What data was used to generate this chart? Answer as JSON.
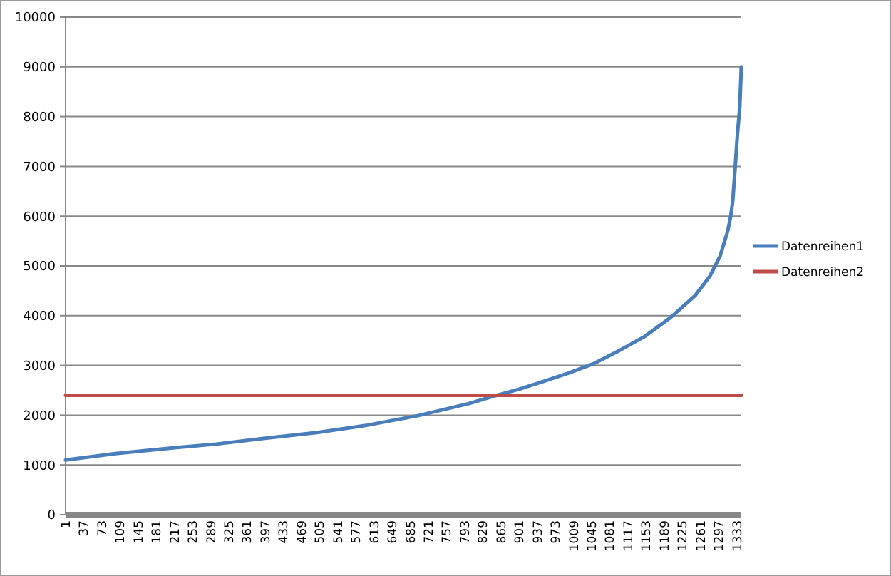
{
  "chart_data": {
    "type": "line",
    "xlim": [
      1,
      1342
    ],
    "xticks": [
      1,
      37,
      73,
      109,
      145,
      181,
      217,
      253,
      289,
      325,
      361,
      397,
      433,
      469,
      505,
      541,
      577,
      613,
      649,
      685,
      721,
      757,
      793,
      829,
      865,
      901,
      937,
      973,
      1009,
      1045,
      1081,
      1117,
      1153,
      1189,
      1225,
      1261,
      1297,
      1333
    ],
    "ylim": [
      0,
      10000
    ],
    "yticks": [
      0,
      1000,
      2000,
      3000,
      4000,
      5000,
      6000,
      7000,
      8000,
      9000,
      10000
    ],
    "grid": "y",
    "legend": "right",
    "line_style": "solid",
    "series": [
      {
        "name": "Datenreihen1",
        "color": "#4a7ebb",
        "x": [
          1,
          100,
          200,
          300,
          400,
          500,
          600,
          700,
          800,
          850,
          900,
          950,
          1000,
          1050,
          1100,
          1150,
          1200,
          1250,
          1280,
          1300,
          1315,
          1321,
          1325,
          1330,
          1334,
          1339,
          1342
        ],
        "values": [
          1100,
          1230,
          1330,
          1420,
          1540,
          1650,
          1800,
          1990,
          2230,
          2380,
          2520,
          2680,
          2850,
          3040,
          3300,
          3580,
          3950,
          4400,
          4800,
          5200,
          5700,
          6000,
          6300,
          7000,
          7600,
          8200,
          9000
        ]
      },
      {
        "name": "Datenreihen2",
        "color": "#be4b48",
        "x": [
          1,
          1342
        ],
        "values": [
          2400,
          2400
        ]
      }
    ]
  }
}
